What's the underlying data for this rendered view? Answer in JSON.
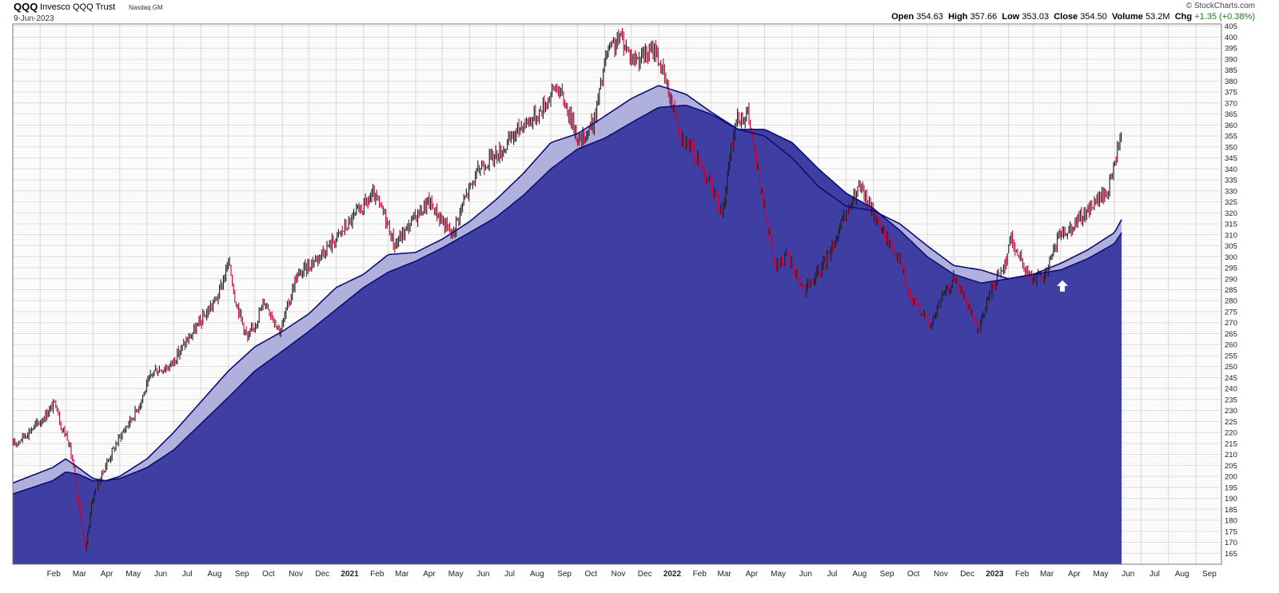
{
  "header": {
    "ticker": "QQQ",
    "name": "Invesco QQQ Trust",
    "exchange": "Nasdaq GM",
    "date": "9-Jun-2023",
    "copyright": "© StockCharts.com",
    "labels": {
      "open": "Open",
      "high": "High",
      "low": "Low",
      "close": "Close",
      "volume": "Volume",
      "chg": "Chg"
    },
    "values": {
      "open": "354.63",
      "high": "357.66",
      "low": "353.03",
      "close": "354.50",
      "volume": "53.2M",
      "chg": "+1.35 (+0.38%)"
    }
  },
  "colors": {
    "up_bar": "#1a1a1a",
    "down_bar": "#cc0033",
    "ema_fill": "#3f3fa3",
    "ema_line": "#0c0c7a",
    "band_fill": "#b0b0dc",
    "grid": "#d8d8d8",
    "arrow": "#ffffff"
  },
  "chart_data": {
    "type": "line",
    "title": "",
    "y_axis": {
      "range": [
        160,
        406
      ],
      "side": "right",
      "ticks": [
        165,
        170,
        175,
        180,
        185,
        190,
        195,
        200,
        205,
        210,
        215,
        220,
        225,
        230,
        235,
        240,
        245,
        250,
        255,
        260,
        265,
        270,
        275,
        280,
        285,
        290,
        295,
        300,
        305,
        310,
        315,
        320,
        325,
        330,
        335,
        340,
        345,
        350,
        355,
        360,
        365,
        370,
        375,
        380,
        385,
        390,
        395,
        400,
        405
      ],
      "grid": true
    },
    "x_axis": {
      "range": [
        "2020-01-01",
        "2023-09-30"
      ],
      "labels": [
        {
          "date": "2020-02-01",
          "label": "Feb"
        },
        {
          "date": "2020-03-01",
          "label": "Mar"
        },
        {
          "date": "2020-04-01",
          "label": "Apr"
        },
        {
          "date": "2020-05-01",
          "label": "May"
        },
        {
          "date": "2020-06-01",
          "label": "Jun"
        },
        {
          "date": "2020-07-01",
          "label": "Jul"
        },
        {
          "date": "2020-08-01",
          "label": "Aug"
        },
        {
          "date": "2020-09-01",
          "label": "Sep"
        },
        {
          "date": "2020-10-01",
          "label": "Oct"
        },
        {
          "date": "2020-11-01",
          "label": "Nov"
        },
        {
          "date": "2020-12-01",
          "label": "Dec"
        },
        {
          "date": "2021-01-01",
          "label": "2021",
          "bold": true
        },
        {
          "date": "2021-02-01",
          "label": "Feb"
        },
        {
          "date": "2021-03-01",
          "label": "Mar"
        },
        {
          "date": "2021-04-01",
          "label": "Apr"
        },
        {
          "date": "2021-05-01",
          "label": "May"
        },
        {
          "date": "2021-06-01",
          "label": "Jun"
        },
        {
          "date": "2021-07-01",
          "label": "Jul"
        },
        {
          "date": "2021-08-01",
          "label": "Aug"
        },
        {
          "date": "2021-09-01",
          "label": "Sep"
        },
        {
          "date": "2021-10-01",
          "label": "Oct"
        },
        {
          "date": "2021-11-01",
          "label": "Nov"
        },
        {
          "date": "2021-12-01",
          "label": "Dec"
        },
        {
          "date": "2022-01-01",
          "label": "2022",
          "bold": true
        },
        {
          "date": "2022-02-01",
          "label": "Feb"
        },
        {
          "date": "2022-03-01",
          "label": "Mar"
        },
        {
          "date": "2022-04-01",
          "label": "Apr"
        },
        {
          "date": "2022-05-01",
          "label": "May"
        },
        {
          "date": "2022-06-01",
          "label": "Jun"
        },
        {
          "date": "2022-07-01",
          "label": "Jul"
        },
        {
          "date": "2022-08-01",
          "label": "Aug"
        },
        {
          "date": "2022-09-01",
          "label": "Sep"
        },
        {
          "date": "2022-10-01",
          "label": "Oct"
        },
        {
          "date": "2022-11-01",
          "label": "Nov"
        },
        {
          "date": "2022-12-01",
          "label": "Dec"
        },
        {
          "date": "2023-01-01",
          "label": "2023",
          "bold": true
        },
        {
          "date": "2023-02-01",
          "label": "Feb"
        },
        {
          "date": "2023-03-01",
          "label": "Mar"
        },
        {
          "date": "2023-04-01",
          "label": "Apr"
        },
        {
          "date": "2023-05-01",
          "label": "May"
        },
        {
          "date": "2023-06-01",
          "label": "Jun"
        },
        {
          "date": "2023-07-01",
          "label": "Jul"
        },
        {
          "date": "2023-08-01",
          "label": "Aug"
        },
        {
          "date": "2023-09-01",
          "label": "Sep"
        }
      ]
    },
    "price_series": {
      "x": [
        "2020-01-01",
        "2020-01-15",
        "2020-02-01",
        "2020-02-19",
        "2020-02-25",
        "2020-03-03",
        "2020-03-09",
        "2020-03-16",
        "2020-03-23",
        "2020-03-31",
        "2020-04-15",
        "2020-05-01",
        "2020-05-20",
        "2020-06-08",
        "2020-06-26",
        "2020-07-13",
        "2020-07-31",
        "2020-08-20",
        "2020-09-02",
        "2020-09-08",
        "2020-09-23",
        "2020-10-12",
        "2020-10-30",
        "2020-11-16",
        "2020-12-01",
        "2020-12-31",
        "2021-01-21",
        "2021-02-12",
        "2021-02-26",
        "2021-03-08",
        "2021-03-31",
        "2021-04-16",
        "2021-05-12",
        "2021-05-28",
        "2021-06-15",
        "2021-07-07",
        "2021-07-30",
        "2021-08-18",
        "2021-09-07",
        "2021-09-17",
        "2021-10-04",
        "2021-10-20",
        "2021-11-03",
        "2021-11-19",
        "2021-12-03",
        "2021-12-20",
        "2021-12-28",
        "2022-01-10",
        "2022-01-27",
        "2022-02-08",
        "2022-02-23",
        "2022-03-14",
        "2022-03-29",
        "2022-04-12",
        "2022-04-29",
        "2022-05-12",
        "2022-05-27",
        "2022-06-16",
        "2022-07-05",
        "2022-07-22",
        "2022-08-08",
        "2022-08-16",
        "2022-09-01",
        "2022-09-13",
        "2022-09-30",
        "2022-10-13",
        "2022-10-27",
        "2022-11-04",
        "2022-11-16",
        "2022-12-01",
        "2022-12-13",
        "2022-12-28",
        "2023-01-12",
        "2023-01-31",
        "2023-02-02",
        "2023-02-22",
        "2023-03-13",
        "2023-03-31",
        "2023-04-25",
        "2023-05-10",
        "2023-05-25",
        "2023-06-02",
        "2023-06-09"
      ],
      "close": [
        214,
        219,
        225,
        234,
        222,
        218,
        206,
        185,
        166,
        190,
        205,
        218,
        230,
        248,
        250,
        260,
        270,
        282,
        298,
        282,
        262,
        280,
        266,
        290,
        296,
        308,
        318,
        328,
        318,
        305,
        318,
        325,
        310,
        328,
        342,
        348,
        360,
        365,
        378,
        370,
        352,
        362,
        392,
        400,
        390,
        392,
        395,
        378,
        355,
        348,
        338,
        320,
        362,
        365,
        325,
        296,
        300,
        284,
        295,
        310,
        325,
        332,
        320,
        310,
        300,
        280,
        275,
        268,
        280,
        290,
        282,
        265,
        285,
        300,
        310,
        292,
        290,
        310,
        318,
        325,
        330,
        345,
        355
      ]
    },
    "ema_short": {
      "name": "",
      "x": [
        "2020-01-01",
        "2020-02-15",
        "2020-03-01",
        "2020-03-15",
        "2020-04-01",
        "2020-04-15",
        "2020-05-01",
        "2020-06-01",
        "2020-07-01",
        "2020-08-01",
        "2020-09-01",
        "2020-10-01",
        "2020-11-01",
        "2020-12-01",
        "2021-01-01",
        "2021-02-01",
        "2021-03-01",
        "2021-04-01",
        "2021-05-01",
        "2021-06-01",
        "2021-07-01",
        "2021-08-01",
        "2021-09-01",
        "2021-10-01",
        "2021-11-01",
        "2021-12-01",
        "2022-01-01",
        "2022-02-01",
        "2022-03-01",
        "2022-04-01",
        "2022-05-01",
        "2022-06-01",
        "2022-07-01",
        "2022-08-01",
        "2022-09-01",
        "2022-10-01",
        "2022-11-01",
        "2022-12-01",
        "2023-01-01",
        "2023-02-01",
        "2023-03-01",
        "2023-04-01",
        "2023-05-01",
        "2023-06-01",
        "2023-06-09"
      ],
      "values": [
        197,
        204,
        208,
        204,
        199,
        198,
        200,
        208,
        220,
        234,
        248,
        259,
        266,
        274,
        286,
        292,
        301,
        302,
        308,
        316,
        326,
        338,
        352,
        356,
        364,
        372,
        378,
        374,
        366,
        358,
        355,
        345,
        332,
        323,
        321,
        315,
        305,
        296,
        294,
        290,
        292,
        297,
        303,
        311,
        317
      ]
    },
    "ema_long": {
      "name": "",
      "x": [
        "2020-01-01",
        "2020-02-15",
        "2020-03-01",
        "2020-03-15",
        "2020-04-01",
        "2020-04-15",
        "2020-05-01",
        "2020-06-01",
        "2020-07-01",
        "2020-08-01",
        "2020-09-01",
        "2020-10-01",
        "2020-11-01",
        "2020-12-01",
        "2021-01-01",
        "2021-02-01",
        "2021-03-01",
        "2021-04-01",
        "2021-05-01",
        "2021-06-01",
        "2021-07-01",
        "2021-08-01",
        "2021-09-01",
        "2021-10-01",
        "2021-11-01",
        "2021-12-01",
        "2022-01-01",
        "2022-02-01",
        "2022-03-01",
        "2022-04-01",
        "2022-05-01",
        "2022-06-01",
        "2022-07-01",
        "2022-08-01",
        "2022-09-01",
        "2022-10-01",
        "2022-11-01",
        "2022-12-01",
        "2023-01-01",
        "2023-02-01",
        "2023-03-01",
        "2023-04-01",
        "2023-05-01",
        "2023-06-01",
        "2023-06-09"
      ],
      "values": [
        192,
        198,
        202,
        201,
        198,
        198,
        199,
        204,
        212,
        224,
        236,
        248,
        257,
        266,
        276,
        286,
        293,
        298,
        304,
        311,
        318,
        328,
        340,
        349,
        354,
        361,
        368,
        369,
        365,
        358,
        358,
        352,
        340,
        329,
        322,
        312,
        300,
        292,
        288,
        290,
        292,
        294,
        299,
        306,
        311
      ]
    },
    "annotations": [
      {
        "type": "up-arrow",
        "date": "2023-04-03",
        "value": 286
      }
    ]
  }
}
